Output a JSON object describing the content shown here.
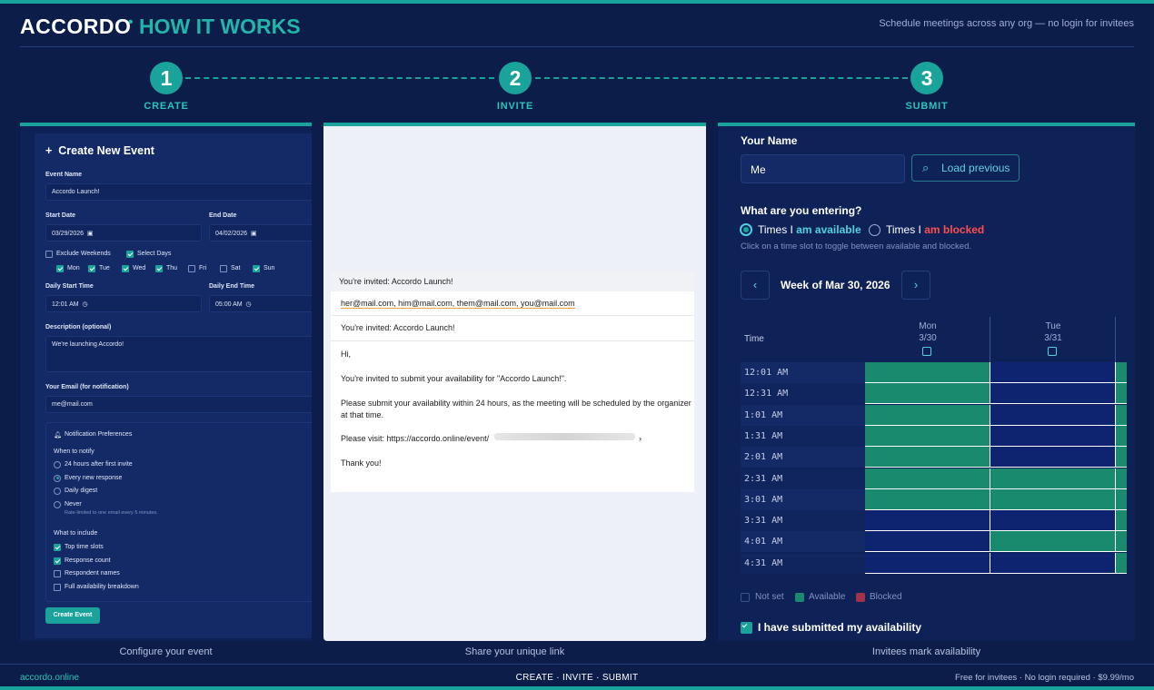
{
  "brand": {
    "name": "ACCORDO",
    "separator": "•",
    "subtitle": "HOW IT WORKS"
  },
  "tagline": "Schedule meetings across any org — no login for invitees",
  "steps": [
    {
      "number": "1",
      "label": "CREATE",
      "caption": "Configure your event"
    },
    {
      "number": "2",
      "label": "INVITE",
      "caption": "Share your unique link"
    },
    {
      "number": "3",
      "label": "SUBMIT",
      "caption": "Invitees mark availability"
    }
  ],
  "create": {
    "title": "Create New Event",
    "plus": "+",
    "event_name_label": "Event Name",
    "event_name_value": "Accordo Launch!",
    "start_date_label": "Start Date",
    "start_date_value": "03/29/2026",
    "end_date_label": "End Date",
    "end_date_value": "04/02/2026",
    "exclude_weekends": "Exclude Weekends",
    "select_days": "Select Days",
    "days": [
      "Mon",
      "Tue",
      "Wed",
      "Thu",
      "Fri",
      "Sat",
      "Sun"
    ],
    "days_checked": [
      true,
      true,
      true,
      true,
      false,
      false,
      true
    ],
    "daily_start_label": "Daily Start Time",
    "daily_start_value": "12:01 AM",
    "daily_end_label": "Daily End Time",
    "daily_end_value": "05:00 AM",
    "description_label": "Description (optional)",
    "description_value": "We're launching Accordo!",
    "email_label": "Your Email (for notification)",
    "email_value": "me@mail.com",
    "notif_title": "Notification Preferences",
    "when_label": "When to notify",
    "when_options": [
      "24 hours after first invite",
      "Every new response",
      "Daily digest",
      "Never"
    ],
    "when_selected": 1,
    "rate_note": "Rate-limited to one email every 5 minutes.",
    "include_label": "What to include",
    "include_options": [
      "Top time slots",
      "Response count",
      "Respondent names",
      "Full availability breakdown"
    ],
    "include_checked": [
      true,
      true,
      false,
      false
    ],
    "button": "Create Event"
  },
  "invite": {
    "header": "You're invited: Accordo Launch!",
    "to": "her@mail.com, him@mail.com, them@mail.com, you@mail.com",
    "subject": "You're invited: Accordo Launch!",
    "greeting": "Hi,",
    "line1": "You're invited to submit your availability for \"Accordo Launch!\".",
    "line2a": "Please submit your availability within 24 hours, as the meeting will be scheduled by the organizer",
    "line2b": "at that time.",
    "visit": "Please visit: https://accordo.online/event/",
    "visit_end": "›",
    "thanks": "Thank you!"
  },
  "submit": {
    "name_label": "Your Name",
    "name_value": "Me",
    "load_button": "Load previous",
    "entering_label": "What are you entering?",
    "opt_available_prefix": "Times I ",
    "opt_available_em": "am available",
    "opt_blocked_prefix": "Times I ",
    "opt_blocked_em": "am blocked",
    "hint": "Click on a time slot to toggle between available and blocked.",
    "week_label": "Week of Mar 30, 2026",
    "prev": "‹",
    "next": "›",
    "time_header": "Time",
    "days": [
      {
        "name": "Mon",
        "date": "3/30"
      },
      {
        "name": "Tue",
        "date": "3/31"
      }
    ],
    "times": [
      "12:01 AM",
      "12:31 AM",
      "1:01 AM",
      "1:31 AM",
      "2:01 AM",
      "2:31 AM",
      "3:01 AM",
      "3:31 AM",
      "4:01 AM",
      "4:31 AM"
    ],
    "mon_available": [
      true,
      true,
      true,
      true,
      true,
      true,
      true,
      false,
      false,
      false
    ],
    "tue_available": [
      false,
      false,
      false,
      false,
      false,
      true,
      true,
      false,
      true,
      false
    ],
    "legend": [
      "Not set",
      "Available",
      "Blocked"
    ],
    "submitted": "I have submitted my availability"
  },
  "footer": {
    "site": "accordo.online",
    "steps": "CREATE · INVITE · SUBMIT",
    "pricing": "Free for invitees · No login required · $9.99/mo"
  },
  "colors": {
    "accent": "#1aa39a",
    "background": "#0d1d4a",
    "available": "#1a8a6f",
    "blocked": "#ff4d4d",
    "available_text": "#4fd1e0"
  }
}
